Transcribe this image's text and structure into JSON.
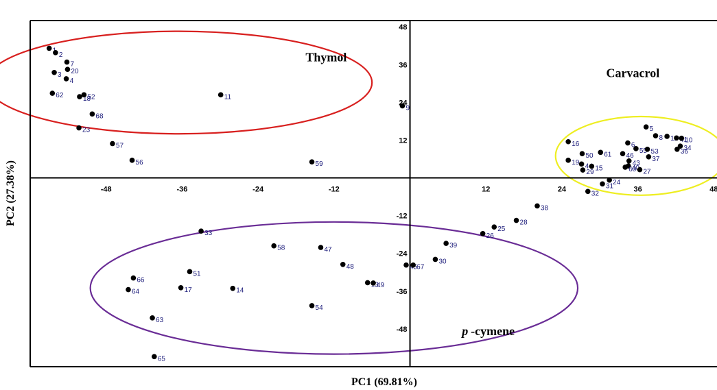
{
  "chart_data": {
    "type": "scatter",
    "xlabel": "PC1 (69.81%)",
    "ylabel": "PC2 (27.38%)",
    "xlim": [
      -60,
      48.5
    ],
    "ylim": [
      -60,
      50
    ],
    "x_ticks": [
      -48,
      -36,
      -24,
      -12,
      12,
      24,
      36,
      48
    ],
    "y_ticks": [
      48,
      36,
      24,
      12,
      -12,
      -24,
      -36,
      -48
    ],
    "grid": false,
    "groups": [
      {
        "name": "Thymol",
        "color": "#d8201f",
        "center": [
          -36.5,
          30.3
        ],
        "radius": [
          30.5,
          16.3
        ]
      },
      {
        "name": "Carvacrol",
        "color": "#eeee22",
        "center": [
          36.5,
          7
        ],
        "radius": [
          13.5,
          12.5
        ]
      },
      {
        "name": "p-cymene",
        "color": "#6a2d96",
        "center": [
          -12,
          -35
        ],
        "radius": [
          38.5,
          21
        ]
      }
    ],
    "group_labels": [
      {
        "key": "thymol",
        "text": "Thymol",
        "x": -16.5,
        "y": 37
      },
      {
        "key": "carvacrol",
        "text": "Carvacrol",
        "x": 31,
        "y": 32
      },
      {
        "key": "pcymene_p",
        "text": "p",
        "x": 8.2,
        "y": -50
      },
      {
        "key": "pcymene_rest",
        "text": "-cymene",
        "x": 9.6,
        "y": -50
      }
    ],
    "points": [
      {
        "label": "1",
        "x": -57,
        "y": 41.2
      },
      {
        "label": "2",
        "x": -56,
        "y": 39.8
      },
      {
        "label": "3",
        "x": -56.2,
        "y": 33.5
      },
      {
        "label": "4",
        "x": -54.3,
        "y": 31.5
      },
      {
        "label": "7",
        "x": -54.2,
        "y": 36.8
      },
      {
        "label": "20",
        "x": -54.1,
        "y": 34.5
      },
      {
        "label": "62",
        "x": -56.5,
        "y": 26.9
      },
      {
        "label": "18",
        "x": -52.2,
        "y": 25.8
      },
      {
        "label": "52",
        "x": -51.5,
        "y": 26.4
      },
      {
        "label": "68",
        "x": -50.2,
        "y": 20.3
      },
      {
        "label": "23",
        "x": -52.3,
        "y": 15.9
      },
      {
        "label": "57",
        "x": -47,
        "y": 10.9
      },
      {
        "label": "56",
        "x": -43.9,
        "y": 5.6
      },
      {
        "label": "11",
        "x": -29.9,
        "y": 26.4
      },
      {
        "label": "59",
        "x": -15.5,
        "y": 5.1
      },
      {
        "label": "9",
        "x": -1.2,
        "y": 22.9
      },
      {
        "label": "16",
        "x": 25,
        "y": 11.5
      },
      {
        "label": "50",
        "x": 27.2,
        "y": 7.7
      },
      {
        "label": "61",
        "x": 30.1,
        "y": 8.1
      },
      {
        "label": "6",
        "x": 34.4,
        "y": 11.1
      },
      {
        "label": "55",
        "x": 35.7,
        "y": 9.3
      },
      {
        "label": "53",
        "x": 37.5,
        "y": 9.1
      },
      {
        "label": "46",
        "x": 33.6,
        "y": 7.7
      },
      {
        "label": "37",
        "x": 37.7,
        "y": 6.7
      },
      {
        "label": "43",
        "x": 34.6,
        "y": 5.4
      },
      {
        "label": "19",
        "x": 25,
        "y": 5.6
      },
      {
        "label": "44",
        "x": 27.1,
        "y": 4.4
      },
      {
        "label": "15",
        "x": 28.7,
        "y": 3.7
      },
      {
        "label": "29",
        "x": 27.3,
        "y": 2.5
      },
      {
        "label": "40",
        "x": 34.5,
        "y": 3.8
      },
      {
        "label": "60",
        "x": 34,
        "y": 3.4
      },
      {
        "label": "27",
        "x": 36.3,
        "y": 2.6
      },
      {
        "label": "5",
        "x": 37.3,
        "y": 16.2
      },
      {
        "label": "8",
        "x": 38.8,
        "y": 13.4
      },
      {
        "label": "12",
        "x": 40.6,
        "y": 13.2
      },
      {
        "label": "41",
        "x": 42.1,
        "y": 12.7
      },
      {
        "label": "10",
        "x": 42.9,
        "y": 12.6
      },
      {
        "label": "34",
        "x": 42.7,
        "y": 10.1
      },
      {
        "label": "36",
        "x": 42.2,
        "y": 9.1
      },
      {
        "label": "35",
        "x": 49.5,
        "y": 14.2
      },
      {
        "label": "24",
        "x": 31.5,
        "y": -0.7
      },
      {
        "label": "31",
        "x": 30.4,
        "y": -1.9
      },
      {
        "label": "32",
        "x": 28.1,
        "y": -4.3
      },
      {
        "label": "38",
        "x": 20.1,
        "y": -8.9
      },
      {
        "label": "28",
        "x": 16.8,
        "y": -13.5
      },
      {
        "label": "25",
        "x": 13.3,
        "y": -15.6
      },
      {
        "label": "26",
        "x": 11.5,
        "y": -17.7
      },
      {
        "label": "39",
        "x": 5.7,
        "y": -20.8
      },
      {
        "label": "30",
        "x": 4,
        "y": -25.9
      },
      {
        "label": "45",
        "x": -0.6,
        "y": -27.7
      },
      {
        "label": "67",
        "x": 0.5,
        "y": -27.7
      },
      {
        "label": "13",
        "x": -6.7,
        "y": -33.3
      },
      {
        "label": "49",
        "x": -5.8,
        "y": -33.4
      },
      {
        "label": "47",
        "x": -14.1,
        "y": -22.1
      },
      {
        "label": "48",
        "x": -10.6,
        "y": -27.5
      },
      {
        "label": "58",
        "x": -21.5,
        "y": -21.6
      },
      {
        "label": "54",
        "x": -15.5,
        "y": -40.6
      },
      {
        "label": "33",
        "x": -33,
        "y": -16.9
      },
      {
        "label": "51",
        "x": -34.8,
        "y": -29.8
      },
      {
        "label": "17",
        "x": -36.2,
        "y": -34.9
      },
      {
        "label": "14",
        "x": -28,
        "y": -35.1
      },
      {
        "label": "66",
        "x": -43.7,
        "y": -31.8
      },
      {
        "label": "64",
        "x": -44.5,
        "y": -35.5
      },
      {
        "label": "63",
        "x": -40.7,
        "y": -44.5
      },
      {
        "label": "65",
        "x": -40.4,
        "y": -56.8
      }
    ]
  }
}
